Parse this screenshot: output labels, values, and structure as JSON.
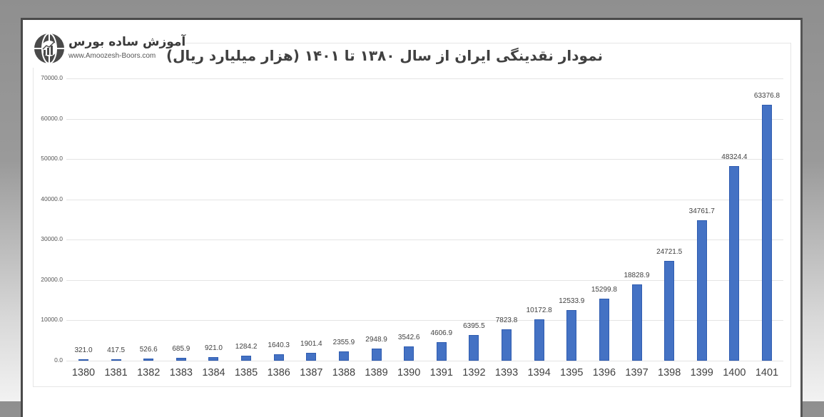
{
  "logo": {
    "name": "آموزش ساده بورس",
    "url": "www.Amoozesh-Boors.com",
    "icon": "globe-chart-icon"
  },
  "chart_data": {
    "type": "bar",
    "title": "نمودار نقدینگی ایران از سال ۱۳۸۰ تا ۱۴۰۱ (هزار میلیارد ریال)",
    "xlabel": "",
    "ylabel": "",
    "ylim": [
      0,
      70000
    ],
    "grid": true,
    "legend": "none",
    "bar_color": "#4472c4",
    "yticks": [
      "70000.0",
      "60000.0",
      "50000.0",
      "40000.0",
      "30000.0",
      "20000.0",
      "10000.0",
      "0.0"
    ],
    "categories": [
      "1380",
      "1381",
      "1382",
      "1383",
      "1384",
      "1385",
      "1386",
      "1387",
      "1388",
      "1389",
      "1390",
      "1391",
      "1392",
      "1393",
      "1394",
      "1395",
      "1396",
      "1397",
      "1398",
      "1399",
      "1400",
      "1401"
    ],
    "values": [
      321.0,
      417.5,
      526.6,
      685.9,
      921.0,
      1284.2,
      1640.3,
      1901.4,
      2355.9,
      2948.9,
      3542.6,
      4606.9,
      6395.5,
      7823.8,
      10172.8,
      12533.9,
      15299.8,
      18828.9,
      24721.5,
      34761.7,
      48324.4,
      63376.8
    ],
    "value_labels": [
      "321.0",
      "417.5",
      "526.6",
      "685.9",
      "921.0",
      "1284.2",
      "1640.3",
      "1901.4",
      "2355.9",
      "2948.9",
      "3542.6",
      "4606.9",
      "6395.5",
      "7823.8",
      "10172.8",
      "12533.9",
      "15299.8",
      "18828.9",
      "24721.5",
      "34761.7",
      "48324.4",
      "63376.8"
    ]
  }
}
